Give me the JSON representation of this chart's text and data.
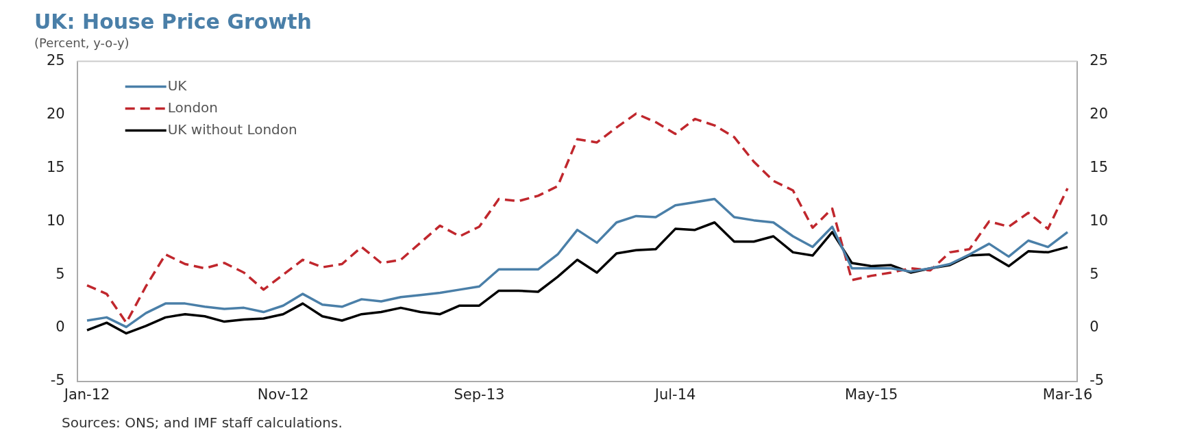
{
  "chart_data": {
    "type": "line",
    "title": "UK: House Price Growth",
    "subtitle": "(Percent, y-o-y)",
    "categories": [
      "Jan-12",
      null,
      null,
      null,
      null,
      null,
      null,
      null,
      null,
      null,
      "Nov-12",
      null,
      null,
      null,
      null,
      null,
      null,
      null,
      null,
      null,
      "Sep-13",
      null,
      null,
      null,
      null,
      null,
      null,
      null,
      null,
      null,
      "Jul-14",
      null,
      null,
      null,
      null,
      null,
      null,
      null,
      null,
      null,
      "May-15",
      null,
      null,
      null,
      null,
      null,
      null,
      null,
      null,
      null,
      "Mar-16"
    ],
    "series": [
      {
        "name": "UK",
        "color": "#4a7fa8",
        "line_style": "solid",
        "values": [
          0.7,
          1.0,
          0.1,
          1.4,
          2.3,
          2.3,
          2.0,
          1.8,
          1.9,
          1.5,
          2.1,
          3.2,
          2.2,
          2.0,
          2.7,
          2.5,
          2.9,
          3.1,
          3.3,
          3.6,
          3.9,
          5.5,
          5.5,
          5.5,
          6.9,
          9.2,
          8.0,
          9.9,
          10.5,
          10.4,
          11.5,
          11.8,
          12.1,
          10.4,
          10.1,
          9.9,
          8.6,
          7.6,
          9.5,
          5.6,
          5.6,
          5.6,
          5.3,
          5.6,
          6.0,
          6.9,
          7.9,
          6.7,
          8.2,
          7.6,
          9.0
        ]
      },
      {
        "name": "London",
        "color": "#c0272d",
        "line_style": "dashed",
        "values": [
          4.0,
          3.2,
          0.5,
          3.9,
          6.9,
          6.0,
          5.6,
          6.1,
          5.2,
          3.6,
          5.0,
          6.4,
          5.7,
          6.0,
          7.6,
          6.1,
          6.4,
          8.0,
          9.6,
          8.6,
          9.5,
          12.1,
          11.9,
          12.4,
          13.3,
          17.7,
          17.4,
          18.8,
          20.1,
          19.3,
          18.2,
          19.6,
          19.0,
          17.9,
          15.6,
          13.8,
          12.9,
          9.4,
          11.2,
          4.5,
          4.9,
          5.2,
          5.6,
          5.4,
          7.1,
          7.4,
          10.0,
          9.5,
          10.8,
          9.3,
          13.1
        ]
      },
      {
        "name": "UK without London",
        "color": "#000000",
        "line_style": "solid",
        "values": [
          -0.2,
          0.5,
          -0.5,
          0.2,
          1.0,
          1.3,
          1.1,
          0.6,
          0.8,
          0.9,
          1.3,
          2.3,
          1.1,
          0.7,
          1.3,
          1.5,
          1.9,
          1.5,
          1.3,
          2.1,
          2.1,
          3.5,
          3.5,
          3.4,
          4.8,
          6.4,
          5.2,
          7.0,
          7.3,
          7.4,
          9.3,
          9.2,
          9.9,
          8.1,
          8.1,
          8.6,
          7.1,
          6.8,
          9.0,
          6.1,
          5.8,
          5.9,
          5.2,
          5.6,
          5.9,
          6.8,
          6.9,
          5.8,
          7.2,
          7.1,
          7.6
        ]
      }
    ],
    "ylim": [
      -5,
      25
    ],
    "yticks": [
      -5,
      0,
      5,
      10,
      15,
      20,
      25
    ],
    "y2lim": [
      -5,
      25
    ],
    "y2ticks": [
      -5,
      0,
      5,
      10,
      15,
      20,
      25
    ],
    "grid": false,
    "legend": "top left",
    "marker": "none",
    "annotations": [
      "Sources: ONS; and IMF staff calculations."
    ]
  }
}
